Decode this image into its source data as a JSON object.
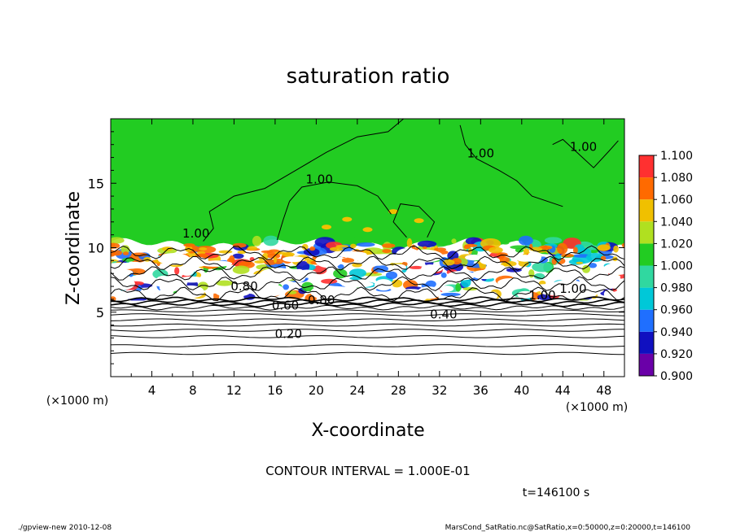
{
  "chart_data": {
    "type": "heatmap",
    "title": "saturation ratio",
    "xlabel": "X-coordinate",
    "ylabel": "Z-coordinate",
    "x_unit": "(×1000 m)",
    "y_unit": "(×1000 m)",
    "xlim": [
      0,
      50
    ],
    "ylim": [
      0,
      20
    ],
    "x_ticks": [
      4,
      8,
      12,
      16,
      20,
      24,
      28,
      32,
      36,
      40,
      44,
      48
    ],
    "y_ticks": [
      5,
      10,
      15
    ],
    "colorbar": {
      "levels": [
        "0.900",
        "0.920",
        "0.940",
        "0.960",
        "0.980",
        "1.000",
        "1.020",
        "1.040",
        "1.060",
        "1.080",
        "1.100"
      ],
      "colors": [
        "#6a00a8",
        "#1010c0",
        "#1f6fff",
        "#00c8d8",
        "#30d8a0",
        "#22cc22",
        "#b0e020",
        "#f0c000",
        "#ff6a00",
        "#ff3030",
        "#ff9a9a"
      ]
    },
    "contour_interval_label": "CONTOUR INTERVAL = 1.000E-01",
    "contour_labels": [
      {
        "text": "1.00",
        "x": 8.3,
        "z": 10.8
      },
      {
        "text": "1.00",
        "x": 20.3,
        "z": 15.0
      },
      {
        "text": "1.00",
        "x": 36.0,
        "z": 17.0
      },
      {
        "text": "1.00",
        "x": 46.0,
        "z": 17.5
      },
      {
        "text": "0.60",
        "x": 17.0,
        "z": 5.2
      },
      {
        "text": "0.80",
        "x": 20.5,
        "z": 5.6
      },
      {
        "text": "0.40",
        "x": 32.4,
        "z": 4.5
      },
      {
        "text": "0.20",
        "x": 17.3,
        "z": 3.0
      },
      {
        "text": "1.00",
        "x": 42.0,
        "z": 6.0
      },
      {
        "text": "1.00",
        "x": 45.0,
        "z": 6.5
      },
      {
        "text": "0.80",
        "x": 13.0,
        "z": 6.7
      }
    ],
    "time_label": "t=146100 s",
    "footer_left": "./gpview-new  2010-12-08",
    "footer_right": "MarsCond_SatRatio.nc@SatRatio,x=0:50000,z=0:20000,t=146100"
  }
}
